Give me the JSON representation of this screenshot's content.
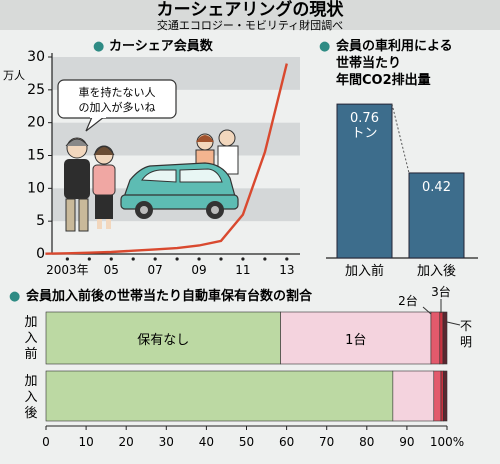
{
  "header": {
    "title": "カーシェアリングの現状",
    "source": "交通エコロジー・モビリティ財団調べ"
  },
  "icon": "●",
  "speech_bubble": {
    "line1": "車を持たない人",
    "line2": "の加入が多いね"
  },
  "colors": {
    "line": "#d9492f",
    "bar_fill": "#3d6d8c",
    "none_green": "#bcd9a3",
    "one_pink": "#f4d3de",
    "two_red": "#e25a6c",
    "three_red": "#c93240",
    "unknown_dark": "#5a2730",
    "car": "#5dbcb3",
    "band": "#d4d7d8"
  },
  "chart_data": [
    {
      "type": "line",
      "title": "カーシェア会員数",
      "ylabel": "万人",
      "x": [
        2002,
        2003,
        2004,
        2005,
        2006,
        2007,
        2008,
        2009,
        2010,
        2011,
        2012,
        2013
      ],
      "xtick_labels": [
        "2003年",
        "05",
        "07",
        "09",
        "11",
        "13"
      ],
      "xtick_values": [
        2003,
        2005,
        2007,
        2009,
        2011,
        2013
      ],
      "y": [
        0.05,
        0.1,
        0.2,
        0.3,
        0.5,
        0.7,
        0.9,
        1.3,
        2.0,
        6.0,
        15.5,
        29.0
      ],
      "ylim": [
        0,
        30
      ],
      "yticks": [
        0,
        5,
        10,
        15,
        20,
        25,
        30
      ],
      "grid": "horizontal bands"
    },
    {
      "type": "bar",
      "title_lines": [
        "会員の車利用による",
        "世帯当たり",
        "年間CO2排出量"
      ],
      "categories": [
        "加入前",
        "加入後"
      ],
      "values": [
        0.76,
        0.42
      ],
      "value_labels": [
        "0.76\nトン",
        "0.42"
      ],
      "ylim": [
        0,
        0.8
      ]
    },
    {
      "type": "bar",
      "orientation": "horizontal-stacked-percent",
      "title": "会員加入前後の世帯当たり自動車保有台数の割合",
      "categories": [
        "加入前",
        "加入後"
      ],
      "series": [
        {
          "name": "保有なし",
          "values": [
            58.5,
            86.5
          ]
        },
        {
          "name": "1台",
          "values": [
            37.5,
            10.2
          ]
        },
        {
          "name": "2台",
          "values": [
            2.2,
            1.8
          ]
        },
        {
          "name": "3台",
          "values": [
            0.8,
            0.6
          ]
        },
        {
          "name": "不明",
          "values": [
            1.0,
            0.9
          ]
        }
      ],
      "xlim": [
        0,
        100
      ],
      "xticks": [
        0,
        10,
        20,
        30,
        40,
        50,
        60,
        70,
        80,
        90,
        100
      ],
      "xtick_labels": [
        "0",
        "10",
        "20",
        "30",
        "40",
        "50",
        "60",
        "70",
        "80",
        "90",
        "100%"
      ]
    }
  ]
}
